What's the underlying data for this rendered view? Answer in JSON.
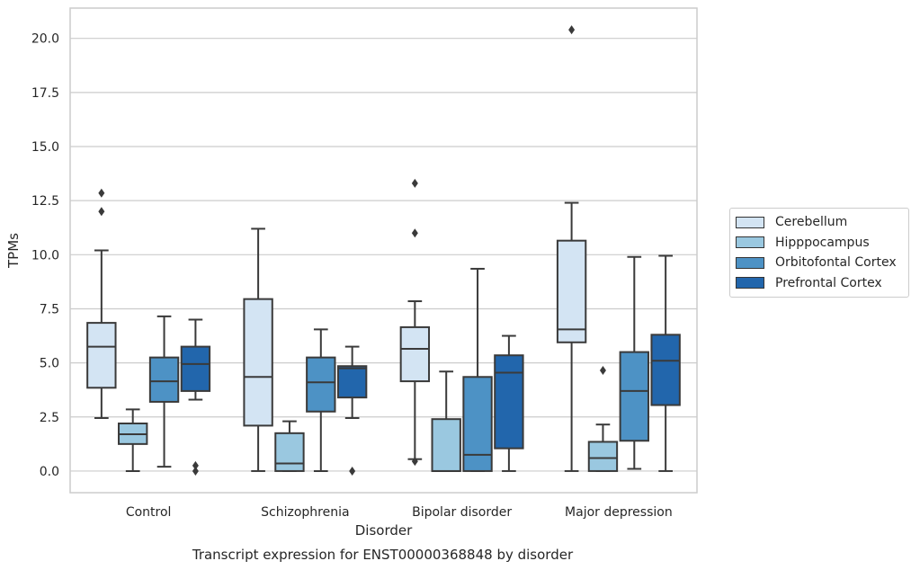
{
  "chart_data": {
    "type": "boxplot",
    "title": "Transcript expression for ENST00000368848 by disorder",
    "xlabel": "Disorder",
    "ylabel": "TPMs",
    "ylim": [
      -1.0,
      21.4
    ],
    "yticks": [
      0.0,
      2.5,
      5.0,
      7.5,
      10.0,
      12.5,
      15.0,
      17.5,
      20.0
    ],
    "ytick_labels": [
      "0.0",
      "2.5",
      "5.0",
      "7.5",
      "10.0",
      "12.5",
      "15.0",
      "17.5",
      "20.0"
    ],
    "grid": "horizontal",
    "legend_position": "outside-right",
    "categories": [
      "Control",
      "Schizophrenia",
      "Bipolar disorder",
      "Major depression"
    ],
    "series": [
      {
        "name": "Cerebellum",
        "color": "#d3e4f3",
        "boxes": [
          {
            "whislo": 2.45,
            "q1": 3.85,
            "med": 5.75,
            "q3": 6.85,
            "whishi": 10.2,
            "fliers": [
              12.0,
              12.85
            ]
          },
          {
            "whislo": 0.0,
            "q1": 2.1,
            "med": 4.35,
            "q3": 7.95,
            "whishi": 11.2,
            "fliers": []
          },
          {
            "whislo": 0.55,
            "q1": 4.15,
            "med": 5.65,
            "q3": 6.65,
            "whishi": 7.85,
            "fliers": [
              0.45,
              11.0,
              13.3
            ]
          },
          {
            "whislo": 0.0,
            "q1": 5.95,
            "med": 6.55,
            "q3": 10.65,
            "whishi": 12.4,
            "fliers": [
              20.4
            ]
          }
        ]
      },
      {
        "name": "Hipppocampus",
        "color": "#9ac8e0",
        "boxes": [
          {
            "whislo": 0.0,
            "q1": 1.25,
            "med": 1.7,
            "q3": 2.2,
            "whishi": 2.85,
            "fliers": []
          },
          {
            "whislo": 0.0,
            "q1": 0.0,
            "med": 0.35,
            "q3": 1.75,
            "whishi": 2.3,
            "fliers": []
          },
          {
            "whislo": 0.0,
            "q1": 0.0,
            "med": 0.0,
            "q3": 2.4,
            "whishi": 4.6,
            "fliers": []
          },
          {
            "whislo": 0.0,
            "q1": 0.0,
            "med": 0.6,
            "q3": 1.35,
            "whishi": 2.15,
            "fliers": [
              4.65
            ]
          }
        ]
      },
      {
        "name": "Orbitofontal Cortex",
        "color": "#4d92c5",
        "boxes": [
          {
            "whislo": 0.2,
            "q1": 3.2,
            "med": 4.15,
            "q3": 5.25,
            "whishi": 7.15,
            "fliers": []
          },
          {
            "whislo": 0.0,
            "q1": 2.75,
            "med": 4.1,
            "q3": 5.25,
            "whishi": 6.55,
            "fliers": []
          },
          {
            "whislo": 0.0,
            "q1": 0.0,
            "med": 0.75,
            "q3": 4.35,
            "whishi": 9.35,
            "fliers": []
          },
          {
            "whislo": 0.1,
            "q1": 1.4,
            "med": 3.7,
            "q3": 5.5,
            "whishi": 9.9,
            "fliers": []
          }
        ]
      },
      {
        "name": "Prefrontal Cortex",
        "color": "#2266ac",
        "boxes": [
          {
            "whislo": 3.3,
            "q1": 3.7,
            "med": 4.95,
            "q3": 5.75,
            "whishi": 7.0,
            "fliers": [
              0.0,
              0.25
            ]
          },
          {
            "whislo": 2.45,
            "q1": 3.4,
            "med": 4.75,
            "q3": 4.85,
            "whishi": 5.75,
            "fliers": [
              0.0
            ]
          },
          {
            "whislo": 0.0,
            "q1": 1.05,
            "med": 4.55,
            "q3": 5.35,
            "whishi": 6.25,
            "fliers": []
          },
          {
            "whislo": 0.0,
            "q1": 3.05,
            "med": 5.1,
            "q3": 6.3,
            "whishi": 9.95,
            "fliers": []
          }
        ]
      }
    ]
  }
}
